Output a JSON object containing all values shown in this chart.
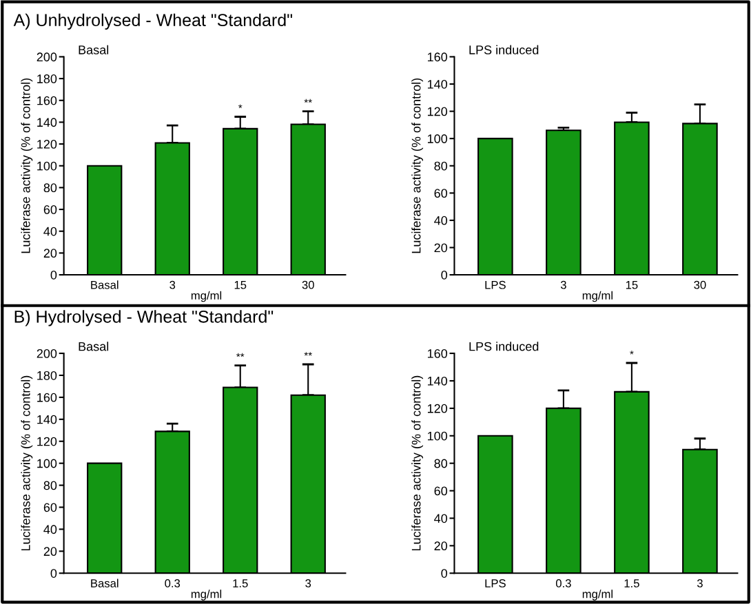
{
  "chart_data": [
    {
      "type": "bar",
      "title": "A) Unhydrolysed - Wheat \"Standard\"",
      "subtitle": "Basal",
      "xlabel": "mg/ml",
      "ylabel": "Luciferase activity (% of control)",
      "categories": [
        "Basal",
        "3",
        "15",
        "30"
      ],
      "values": [
        100,
        121,
        134,
        138
      ],
      "errors": [
        null,
        [
          121,
          137
        ],
        [
          134,
          145
        ],
        [
          138,
          150
        ]
      ],
      "color": "#139613",
      "ylim": [
        0,
        200
      ],
      "yticks": [
        0,
        20,
        40,
        60,
        80,
        100,
        120,
        140,
        160,
        180,
        200
      ],
      "grid": false,
      "annotations": [
        {
          "text": "*",
          "x": "15",
          "y": 145
        },
        {
          "text": "**",
          "x": "30",
          "y": 150
        }
      ]
    },
    {
      "type": "bar",
      "subtitle": "LPS induced",
      "xlabel": "mg/ml",
      "ylabel": "Luciferase activity (% of control)",
      "categories": [
        "LPS",
        "3",
        "15",
        "30"
      ],
      "values": [
        100,
        106,
        112,
        111
      ],
      "errors": [
        null,
        [
          106,
          108
        ],
        [
          112,
          119
        ],
        [
          111,
          125
        ]
      ],
      "color": "#139613",
      "ylim": [
        0,
        160
      ],
      "yticks": [
        0,
        20,
        40,
        60,
        80,
        100,
        120,
        140,
        160
      ],
      "grid": false
    },
    {
      "type": "bar",
      "title": "B) Hydrolysed - Wheat \"Standard\"",
      "subtitle": "Basal",
      "xlabel": "mg/ml",
      "ylabel": "Luciferase activity (% of control)",
      "categories": [
        "Basal",
        "0.3",
        "1.5",
        "3"
      ],
      "values": [
        100,
        129,
        169,
        162
      ],
      "errors": [
        null,
        [
          129,
          136
        ],
        [
          169,
          189
        ],
        [
          162,
          190
        ]
      ],
      "color": "#139613",
      "ylim": [
        0,
        200
      ],
      "yticks": [
        0,
        20,
        40,
        60,
        80,
        100,
        120,
        140,
        160,
        180,
        200
      ],
      "grid": false,
      "annotations": [
        {
          "text": "**",
          "x": "1.5",
          "y": 189
        },
        {
          "text": "**",
          "x": "3",
          "y": 190
        }
      ]
    },
    {
      "type": "bar",
      "subtitle": "LPS induced",
      "xlabel": "mg/ml",
      "ylabel": "Luciferase activity (% of control)",
      "categories": [
        "LPS",
        "0.3",
        "1.5",
        "3"
      ],
      "values": [
        100,
        120,
        132,
        90
      ],
      "errors": [
        null,
        [
          120,
          133
        ],
        [
          132,
          153
        ],
        [
          90,
          98
        ]
      ],
      "color": "#139613",
      "ylim": [
        0,
        160
      ],
      "yticks": [
        0,
        20,
        40,
        60,
        80,
        100,
        120,
        140,
        160
      ],
      "grid": false,
      "annotations": [
        {
          "text": "*",
          "x": "1.5",
          "y": 153
        }
      ]
    }
  ]
}
